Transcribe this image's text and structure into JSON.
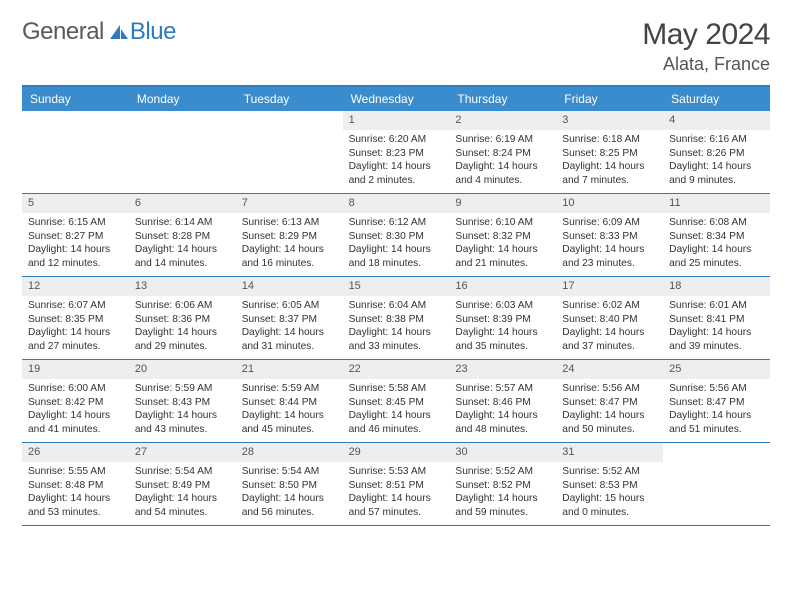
{
  "logo": {
    "word1": "General",
    "word2": "Blue"
  },
  "title": "May 2024",
  "location": "Alata, France",
  "colors": {
    "header_bg": "#3b8ccc",
    "border": "#2b7cc0",
    "daynum_bg": "#eceeef",
    "text": "#333333",
    "title_text": "#444444"
  },
  "weekdays": [
    "Sunday",
    "Monday",
    "Tuesday",
    "Wednesday",
    "Thursday",
    "Friday",
    "Saturday"
  ],
  "weeks": [
    [
      null,
      null,
      null,
      {
        "n": "1",
        "sr": "6:20 AM",
        "ss": "8:23 PM",
        "dl": "14 hours and 2 minutes."
      },
      {
        "n": "2",
        "sr": "6:19 AM",
        "ss": "8:24 PM",
        "dl": "14 hours and 4 minutes."
      },
      {
        "n": "3",
        "sr": "6:18 AM",
        "ss": "8:25 PM",
        "dl": "14 hours and 7 minutes."
      },
      {
        "n": "4",
        "sr": "6:16 AM",
        "ss": "8:26 PM",
        "dl": "14 hours and 9 minutes."
      }
    ],
    [
      {
        "n": "5",
        "sr": "6:15 AM",
        "ss": "8:27 PM",
        "dl": "14 hours and 12 minutes."
      },
      {
        "n": "6",
        "sr": "6:14 AM",
        "ss": "8:28 PM",
        "dl": "14 hours and 14 minutes."
      },
      {
        "n": "7",
        "sr": "6:13 AM",
        "ss": "8:29 PM",
        "dl": "14 hours and 16 minutes."
      },
      {
        "n": "8",
        "sr": "6:12 AM",
        "ss": "8:30 PM",
        "dl": "14 hours and 18 minutes."
      },
      {
        "n": "9",
        "sr": "6:10 AM",
        "ss": "8:32 PM",
        "dl": "14 hours and 21 minutes."
      },
      {
        "n": "10",
        "sr": "6:09 AM",
        "ss": "8:33 PM",
        "dl": "14 hours and 23 minutes."
      },
      {
        "n": "11",
        "sr": "6:08 AM",
        "ss": "8:34 PM",
        "dl": "14 hours and 25 minutes."
      }
    ],
    [
      {
        "n": "12",
        "sr": "6:07 AM",
        "ss": "8:35 PM",
        "dl": "14 hours and 27 minutes."
      },
      {
        "n": "13",
        "sr": "6:06 AM",
        "ss": "8:36 PM",
        "dl": "14 hours and 29 minutes."
      },
      {
        "n": "14",
        "sr": "6:05 AM",
        "ss": "8:37 PM",
        "dl": "14 hours and 31 minutes."
      },
      {
        "n": "15",
        "sr": "6:04 AM",
        "ss": "8:38 PM",
        "dl": "14 hours and 33 minutes."
      },
      {
        "n": "16",
        "sr": "6:03 AM",
        "ss": "8:39 PM",
        "dl": "14 hours and 35 minutes."
      },
      {
        "n": "17",
        "sr": "6:02 AM",
        "ss": "8:40 PM",
        "dl": "14 hours and 37 minutes."
      },
      {
        "n": "18",
        "sr": "6:01 AM",
        "ss": "8:41 PM",
        "dl": "14 hours and 39 minutes."
      }
    ],
    [
      {
        "n": "19",
        "sr": "6:00 AM",
        "ss": "8:42 PM",
        "dl": "14 hours and 41 minutes."
      },
      {
        "n": "20",
        "sr": "5:59 AM",
        "ss": "8:43 PM",
        "dl": "14 hours and 43 minutes."
      },
      {
        "n": "21",
        "sr": "5:59 AM",
        "ss": "8:44 PM",
        "dl": "14 hours and 45 minutes."
      },
      {
        "n": "22",
        "sr": "5:58 AM",
        "ss": "8:45 PM",
        "dl": "14 hours and 46 minutes."
      },
      {
        "n": "23",
        "sr": "5:57 AM",
        "ss": "8:46 PM",
        "dl": "14 hours and 48 minutes."
      },
      {
        "n": "24",
        "sr": "5:56 AM",
        "ss": "8:47 PM",
        "dl": "14 hours and 50 minutes."
      },
      {
        "n": "25",
        "sr": "5:56 AM",
        "ss": "8:47 PM",
        "dl": "14 hours and 51 minutes."
      }
    ],
    [
      {
        "n": "26",
        "sr": "5:55 AM",
        "ss": "8:48 PM",
        "dl": "14 hours and 53 minutes."
      },
      {
        "n": "27",
        "sr": "5:54 AM",
        "ss": "8:49 PM",
        "dl": "14 hours and 54 minutes."
      },
      {
        "n": "28",
        "sr": "5:54 AM",
        "ss": "8:50 PM",
        "dl": "14 hours and 56 minutes."
      },
      {
        "n": "29",
        "sr": "5:53 AM",
        "ss": "8:51 PM",
        "dl": "14 hours and 57 minutes."
      },
      {
        "n": "30",
        "sr": "5:52 AM",
        "ss": "8:52 PM",
        "dl": "14 hours and 59 minutes."
      },
      {
        "n": "31",
        "sr": "5:52 AM",
        "ss": "8:53 PM",
        "dl": "15 hours and 0 minutes."
      },
      null
    ]
  ],
  "labels": {
    "sunrise": "Sunrise: ",
    "sunset": "Sunset: ",
    "daylight": "Daylight: "
  }
}
